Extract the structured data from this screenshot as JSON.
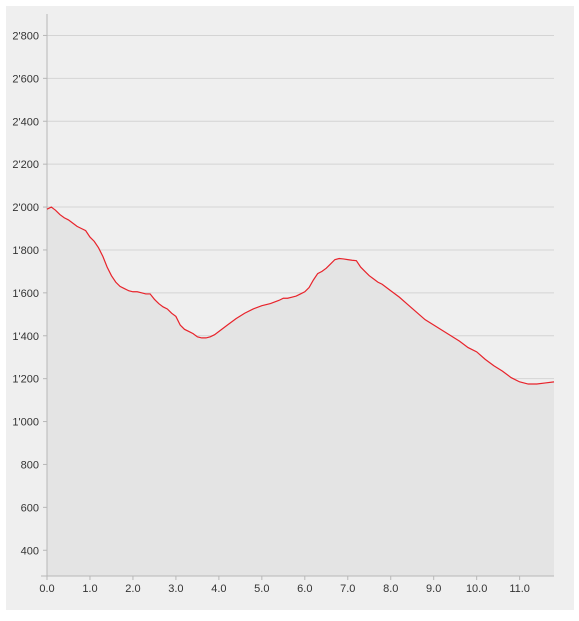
{
  "colors": {
    "background": "#efefef",
    "area_fill": "#e4e4e4",
    "line": "#e8232b",
    "grid": "#d4d4d4",
    "axis": "#b7b7b7",
    "text": "#333333"
  },
  "chart_data": {
    "type": "area",
    "title": "",
    "xlabel": "",
    "ylabel": "",
    "xlim": [
      0,
      11.8
    ],
    "ylim": [
      280,
      2900
    ],
    "grid": "horizontal",
    "legend": "none",
    "x_ticks": [
      {
        "value": 0,
        "label": "0.0"
      },
      {
        "value": 1,
        "label": "1.0"
      },
      {
        "value": 2,
        "label": "2.0"
      },
      {
        "value": 3,
        "label": "3.0"
      },
      {
        "value": 4,
        "label": "4.0"
      },
      {
        "value": 5,
        "label": "5.0"
      },
      {
        "value": 6,
        "label": "6.0"
      },
      {
        "value": 7,
        "label": "7.0"
      },
      {
        "value": 8,
        "label": "8.0"
      },
      {
        "value": 9,
        "label": "9.0"
      },
      {
        "value": 10,
        "label": "10.0"
      },
      {
        "value": 11,
        "label": "11.0"
      }
    ],
    "y_ticks": [
      {
        "value": 400,
        "label": "400"
      },
      {
        "value": 600,
        "label": "600"
      },
      {
        "value": 800,
        "label": "800"
      },
      {
        "value": 1000,
        "label": "1'000"
      },
      {
        "value": 1200,
        "label": "1'200"
      },
      {
        "value": 1400,
        "label": "1'400"
      },
      {
        "value": 1600,
        "label": "1'600"
      },
      {
        "value": 1800,
        "label": "1'800"
      },
      {
        "value": 2000,
        "label": "2'000"
      },
      {
        "value": 2200,
        "label": "2'200"
      },
      {
        "value": 2400,
        "label": "2'400"
      },
      {
        "value": 2600,
        "label": "2'600"
      },
      {
        "value": 2800,
        "label": "2'800"
      }
    ],
    "series": [
      {
        "x": [
          0.0,
          0.1,
          0.2,
          0.3,
          0.4,
          0.5,
          0.6,
          0.7,
          0.8,
          0.9,
          1.0,
          1.1,
          1.2,
          1.3,
          1.4,
          1.5,
          1.6,
          1.7,
          1.8,
          1.9,
          2.0,
          2.1,
          2.2,
          2.3,
          2.4,
          2.5,
          2.6,
          2.7,
          2.8,
          2.9,
          3.0,
          3.1,
          3.2,
          3.3,
          3.4,
          3.5,
          3.6,
          3.7,
          3.8,
          3.9,
          4.0,
          4.2,
          4.4,
          4.6,
          4.8,
          5.0,
          5.2,
          5.4,
          5.5,
          5.6,
          5.7,
          5.8,
          5.9,
          6.0,
          6.1,
          6.2,
          6.3,
          6.4,
          6.5,
          6.6,
          6.7,
          6.8,
          6.9,
          7.0,
          7.1,
          7.2,
          7.3,
          7.4,
          7.5,
          7.6,
          7.7,
          7.8,
          7.9,
          8.0,
          8.2,
          8.4,
          8.6,
          8.8,
          9.0,
          9.2,
          9.4,
          9.6,
          9.8,
          10.0,
          10.2,
          10.4,
          10.6,
          10.8,
          11.0,
          11.2,
          11.4,
          11.6,
          11.8
        ],
        "y": [
          1990,
          2000,
          1985,
          1965,
          1950,
          1940,
          1925,
          1910,
          1900,
          1890,
          1860,
          1840,
          1810,
          1770,
          1720,
          1680,
          1650,
          1630,
          1620,
          1610,
          1605,
          1605,
          1600,
          1595,
          1595,
          1570,
          1550,
          1535,
          1525,
          1505,
          1490,
          1450,
          1430,
          1420,
          1410,
          1395,
          1390,
          1390,
          1395,
          1405,
          1420,
          1450,
          1480,
          1505,
          1525,
          1540,
          1550,
          1565,
          1575,
          1575,
          1580,
          1585,
          1595,
          1605,
          1625,
          1660,
          1690,
          1700,
          1715,
          1735,
          1755,
          1760,
          1758,
          1755,
          1752,
          1750,
          1720,
          1700,
          1680,
          1665,
          1650,
          1640,
          1625,
          1610,
          1580,
          1545,
          1510,
          1475,
          1450,
          1425,
          1400,
          1375,
          1345,
          1325,
          1290,
          1260,
          1235,
          1205,
          1185,
          1175,
          1175,
          1180,
          1185
        ]
      }
    ]
  }
}
